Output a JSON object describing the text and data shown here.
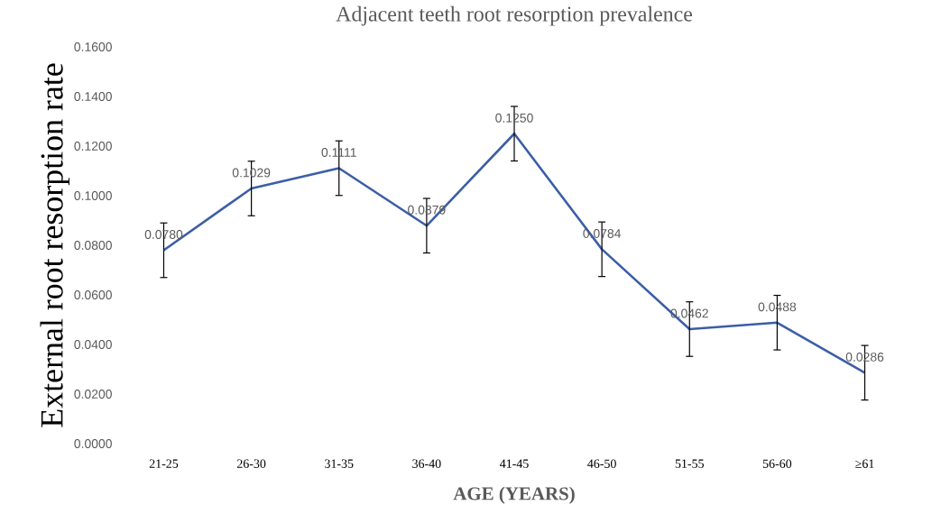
{
  "chart_data": {
    "type": "line",
    "title": "Adjacent teeth root resorption prevalence",
    "xlabel": "AGE (YEARS)",
    "ylabel": "External root resorption rate",
    "categories": [
      "21-25",
      "26-30",
      "31-35",
      "36-40",
      "41-45",
      "46-50",
      "51-55",
      "56-60",
      "≥61"
    ],
    "series": [
      {
        "color": "#3c5ea6",
        "values": [
          0.078,
          0.1029,
          0.1111,
          0.0879,
          0.125,
          0.0784,
          0.0462,
          0.0488,
          0.0286
        ],
        "errors": [
          0.011,
          0.011,
          0.011,
          0.011,
          0.011,
          0.011,
          0.011,
          0.011,
          0.011
        ],
        "value_labels": [
          "0.0780",
          "0.1029",
          "0.1111",
          "0.0879",
          "0.1250",
          "0.0784",
          "0.0462",
          "0.0488",
          "0.0286"
        ]
      }
    ],
    "ylim": [
      0,
      0.16
    ],
    "yticks": [
      {
        "value": 0,
        "label": "0.0000"
      },
      {
        "value": 0.02,
        "label": "0.0200"
      },
      {
        "value": 0.04,
        "label": "0.0400"
      },
      {
        "value": 0.06,
        "label": "0.0600"
      },
      {
        "value": 0.08,
        "label": "0.0800"
      },
      {
        "value": 0.1,
        "label": "0.1000"
      },
      {
        "value": 0.12,
        "label": "0.1200"
      },
      {
        "value": 0.14,
        "label": "0.1400"
      },
      {
        "value": 0.16,
        "label": "0.1600"
      }
    ],
    "marker": "none",
    "line_style": "solid"
  }
}
